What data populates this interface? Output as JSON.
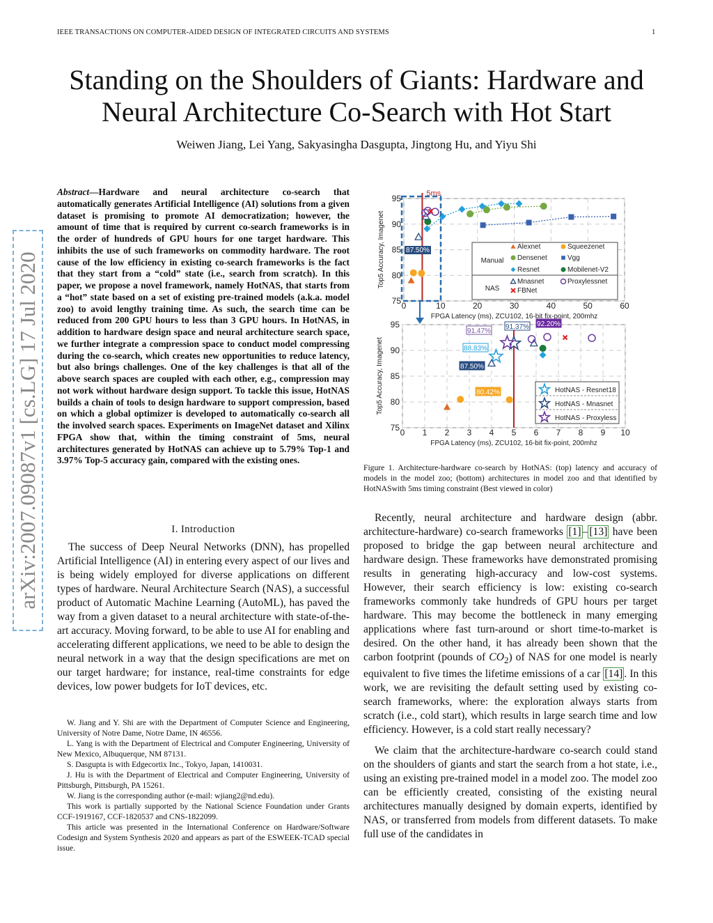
{
  "header": {
    "running_head": "IEEE TRANSACTIONS ON COMPUTER-AIDED DESIGN OF INTEGRATED CIRCUITS AND SYSTEMS",
    "page_number": "1"
  },
  "title": {
    "line1": "Standing on the Shoulders of Giants: Hardware and",
    "line2": "Neural Architecture Co-Search with Hot Start"
  },
  "authors": "Weiwen Jiang, Lei Yang, Sakyasingha Dasgupta, Jingtong Hu, and Yiyu Shi",
  "watermark": "arXiv:2007.09087v1  [cs.LG]  17 Jul 2020",
  "abstract": {
    "label": "Abstract",
    "text": "—Hardware and neural architecture co-search that automatically generates Artificial Intelligence (AI) solutions from a given dataset is promising to promote AI democratization; however, the amount of time that is required by current co-search frameworks is in the order of hundreds of GPU hours for one target hardware. This inhibits the use of such frameworks on commodity hardware. The root cause of the low efficiency in existing co-search frameworks is the fact that they start from a “cold” state (i.e., search from scratch). In this paper, we propose a novel framework, namely HotNAS, that starts from a “hot” state based on a set of existing pre-trained models (a.k.a. model zoo) to avoid lengthy training time. As such, the search time can be reduced from 200 GPU hours to less than 3 GPU hours. In HotNAS, in addition to hardware design space and neural architecture search space, we further integrate a compression space to conduct model compressing during the co-search, which creates new opportunities to reduce latency, but also brings challenges. One of the key challenges is that all of the above search spaces are coupled with each other, e.g., compression may not work without hardware design support. To tackle this issue, HotNAS builds a chain of tools to design hardware to support compression, based on which a global optimizer is developed to automatically co-search all the involved search spaces. Experiments on ImageNet dataset and Xilinx FPGA show that, within the timing constraint of 5ms, neural architectures generated by HotNAS can achieve up to 5.79% Top-1 and 3.97% Top-5 accuracy gain, compared with the existing ones."
  },
  "intro": {
    "heading": "I. Introduction",
    "p1": "The success of Deep Neural Networks (DNN), has propelled Artificial Intelligence (AI) in entering every aspect of our lives and is being widely employed for diverse applications on different types of hardware. Neural Architecture Search (NAS), a successful product of Automatic Machine Learning (AutoML), has paved the way from a given dataset to a neural architecture with state-of-the-art accuracy. Moving forward, to be able to use AI for enabling and accelerating different applications, we need to be able to design the neural network in a way that the design specifications are met on our target hardware; for instance, real-time constraints for edge devices, low power budgets for IoT devices, etc."
  },
  "footnotes": [
    "W. Jiang and Y. Shi are with the Department of Computer Science and Engineering, University of Notre Dame, Notre Dame, IN 46556.",
    "L. Yang is with the Department of Electrical and Computer Engineering, University of New Mexico, Albuquerque, NM 87131.",
    "S. Dasgupta is with Edgecortix Inc., Tokyo, Japan, 1410031.",
    "J. Hu is with the Department of Electrical and Computer Engineering, University of Pittsburgh, Pittsburgh, PA 15261.",
    "W. Jiang is the corresponding author (e-mail: wjiang2@nd.edu).",
    "This work is partially supported by the National Science Foundation under Grants CCF-1919167, CCF-1820537 and CNS-1822099.",
    "This article was presented in the International Conference on Hardware/Software Codesign and System Synthesis 2020 and appears as part of the ESWEEK-TCAD special issue."
  ],
  "figure": {
    "caption": "Figure 1.   Architecture-hardware co-search by HotNAS: (top) latency and accuracy of models in the model zoo; (bottom) architectures in model zoo and that identified by HotNASwith 5ms timing constraint (Best viewed in color)"
  },
  "right": {
    "p1_a": "Recently, neural architecture and hardware design (abbr. architecture-hardware) co-search frameworks ",
    "cite1": "[1]",
    "dash": "–",
    "cite2": "[13]",
    "p1_b": " have been proposed to bridge the gap between neural architecture and hardware design. These frameworks have demonstrated promising results in generating high-accuracy and low-cost systems. However, their search efficiency is low: existing co-search frameworks commonly take hundreds of GPU hours per target hardware. This may become the bottleneck in many emerging applications where fast turn-around or short time-to-market is desired. On the other hand, it has already been shown that the carbon footprint (pounds of ",
    "co": "CO",
    "co_sub": "2",
    "p1_c": ") of NAS for one model is nearly equivalent to five times the lifetime emissions of a car ",
    "cite3": "[14]",
    "p1_d": ". In this work, we are revisiting the default setting used by existing co-search frameworks, where: the exploration always starts from scratch (i.e., cold start), which results in large search time and low efficiency. However, is a cold start really necessary?",
    "p2": "We claim that the architecture-hardware co-search could stand on the shoulders of giants and start the search from a hot state, i.e., using an existing pre-trained model in a model zoo. The model zoo can be efficiently created, consisting of the existing neural architectures manually designed by domain experts, identified by NAS, or transferred from models from different datasets. To make full use of the candidates in"
  },
  "chart_data": [
    {
      "type": "scatter",
      "xlabel": "FPGA Latency (ms), ZCU102, 16-bit fix-point, 200mhz",
      "ylabel": "Top5 Accuracy, Imagenet",
      "xlim": [
        0,
        60
      ],
      "ylim": [
        75,
        95
      ],
      "xticks": [
        "0",
        "10",
        "20",
        "30",
        "40",
        "50",
        "60"
      ],
      "yticks": [
        "75",
        "80",
        "85",
        "90",
        "95"
      ],
      "grid": true,
      "annotations": {
        "constraint": "5ms",
        "constraint_x": 5,
        "label": "87.50%"
      },
      "legend": {
        "placement": "bottom-right",
        "groups": [
          {
            "name": "Manual",
            "entries": [
              "Alexnet",
              "Squeezenet",
              "Densenet",
              "Vgg",
              "Resnet",
              "Mobilenet-V2"
            ]
          },
          {
            "name": "NAS",
            "entries": [
              "Mnasnet",
              "Proxylessnet",
              "FBNet"
            ]
          }
        ]
      },
      "series": [
        {
          "name": "Alexnet",
          "color": "#e06a2a",
          "marker": "triangle",
          "points": [
            [
              2,
              79
            ]
          ]
        },
        {
          "name": "Squeezenet",
          "color": "#f5a623",
          "marker": "circle",
          "points": [
            [
              2.6,
              80.5
            ],
            [
              4.8,
              80.4
            ]
          ]
        },
        {
          "name": "Densenet",
          "color": "#77a843",
          "marker": "circle",
          "line": true,
          "points": [
            [
              18,
              92
            ],
            [
              22.5,
              92.8
            ],
            [
              28,
              93.3
            ],
            [
              38,
              93.5
            ]
          ]
        },
        {
          "name": "Vgg",
          "color": "#3a62b0",
          "marker": "square",
          "line": true,
          "points": [
            [
              21.5,
              89.8
            ],
            [
              34,
              90.3
            ],
            [
              45.5,
              91.4
            ],
            [
              57,
              91.5
            ]
          ]
        },
        {
          "name": "Resnet",
          "color": "#25a0dc",
          "marker": "diamond",
          "line": true,
          "points": [
            [
              6.3,
              89.1
            ],
            [
              10.5,
              91.5
            ],
            [
              15.8,
              92.9
            ],
            [
              21.3,
              93.5
            ],
            [
              26.5,
              94
            ],
            [
              31.3,
              94
            ]
          ]
        },
        {
          "name": "Mobilenet-V2",
          "color": "#1e7a3a",
          "marker": "circle",
          "points": [
            [
              6.5,
              90.5
            ]
          ]
        },
        {
          "name": "Mnasnet",
          "color": "#2a4d80",
          "marker": "open-triangle",
          "points": [
            [
              4,
              87.5
            ],
            [
              6,
              91.5
            ]
          ]
        },
        {
          "name": "Proxylessnet",
          "color": "#6a3aa0",
          "marker": "open-circle",
          "points": [
            [
              5.8,
              92.2
            ],
            [
              6.5,
              92.6
            ],
            [
              8.5,
              92.4
            ]
          ]
        },
        {
          "name": "FBNet",
          "color": "#e02020",
          "marker": "x",
          "points": [
            [
              7.3,
              92.5
            ]
          ]
        }
      ]
    },
    {
      "type": "scatter",
      "xlabel": "FPGA Latency (ms), ZCU102, 16-bit fix-point, 200mhz",
      "ylabel": "Top5 Accuracy, Imagenet",
      "xlim": [
        0,
        10
      ],
      "ylim": [
        75,
        95
      ],
      "xticks": [
        "0",
        "1",
        "2",
        "3",
        "4",
        "5",
        "6",
        "7",
        "8",
        "9",
        "10"
      ],
      "yticks": [
        "75",
        "80",
        "85",
        "90",
        "95"
      ],
      "grid": true,
      "legend": {
        "placement": "bottom-right",
        "entries": [
          "HotNAS - Resnet18",
          "HotNAS - Mnasnet",
          "HotNAS - Proxyless"
        ]
      },
      "annotations": [
        {
          "text": "91.47%",
          "color": "#7a5aa0"
        },
        {
          "text": "91.37%",
          "color": "#2a4d80"
        },
        {
          "text": "92.20%",
          "color": "#6a2aa0"
        },
        {
          "text": "88.83%",
          "color": "#25a0dc"
        },
        {
          "text": "87.50%",
          "color": "#2a4d80"
        },
        {
          "text": "80.42%",
          "color": "#f5a623"
        }
      ],
      "series": [
        {
          "name": "HotNAS - Resnet18",
          "color": "#25a0dc",
          "marker": "open-star",
          "points": [
            [
              4.2,
              88.83
            ]
          ]
        },
        {
          "name": "HotNAS - Mnasnet",
          "color": "#2a4d80",
          "marker": "open-star",
          "points": [
            [
              5,
              91.37
            ]
          ]
        },
        {
          "name": "HotNAS - Proxyless",
          "color": "#6a3aa0",
          "marker": "open-star",
          "points": [
            [
              4.7,
              91.47
            ]
          ]
        },
        {
          "color": "#e06a2a",
          "marker": "triangle",
          "points": [
            [
              2,
              79
            ]
          ]
        },
        {
          "color": "#f5a623",
          "marker": "circle",
          "points": [
            [
              2.6,
              80.5
            ],
            [
              4.8,
              80.42
            ]
          ]
        },
        {
          "color": "#25a0dc",
          "marker": "diamond",
          "points": [
            [
              6.3,
              89.1
            ]
          ]
        },
        {
          "color": "#1e7a3a",
          "marker": "circle",
          "points": [
            [
              6.3,
              90.4
            ]
          ]
        },
        {
          "color": "#2a4d80",
          "marker": "open-triangle",
          "points": [
            [
              4,
              87.5
            ],
            [
              5.9,
              91.4
            ]
          ]
        },
        {
          "color": "#6a3aa0",
          "marker": "open-circle",
          "points": [
            [
              5.8,
              92.2
            ],
            [
              6.5,
              92.6
            ],
            [
              8.5,
              92.4
            ]
          ]
        },
        {
          "color": "#e02020",
          "marker": "x",
          "points": [
            [
              7.3,
              92.5
            ]
          ]
        }
      ]
    }
  ]
}
